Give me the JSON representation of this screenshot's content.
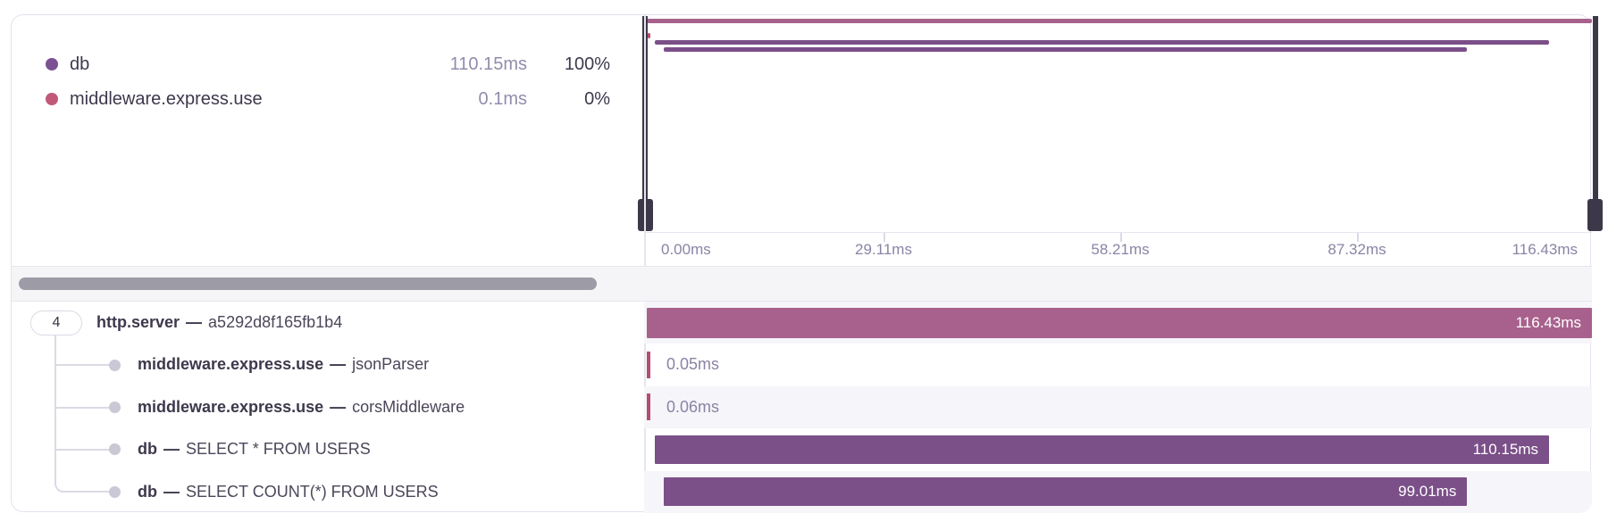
{
  "legend": {
    "items": [
      {
        "name": "db",
        "duration": "110.15ms",
        "percent": "100%",
        "color": "#7c5193"
      },
      {
        "name": "middleware.express.use",
        "duration": "0.1ms",
        "percent": "0%",
        "color": "#c05a78"
      }
    ]
  },
  "minimap": {
    "total_ms": 116.43,
    "axis_labels": [
      "0.00ms",
      "29.11ms",
      "58.21ms",
      "87.32ms",
      "116.43ms"
    ],
    "spans": [
      {
        "name": "http.server",
        "start_ms": 0,
        "duration_ms": 116.43,
        "color": "#a8618c"
      },
      {
        "name": "middleware.express.use",
        "start_ms": 0.15,
        "duration_ms": 0.11,
        "color": "#b44e70"
      },
      {
        "name": "db SELECT * FROM USERS",
        "start_ms": 1.0,
        "duration_ms": 110.15,
        "color": "#7b4f88"
      },
      {
        "name": "db SELECT COUNT(*) FROM USERS",
        "start_ms": 2.05,
        "duration_ms": 99.01,
        "color": "#7b4f88"
      }
    ]
  },
  "waterfall": {
    "rows": [
      {
        "badge": "4",
        "name": "http.server",
        "separator": "—",
        "suffix": "a5292d8f165fb1b4",
        "duration_label": "116.43ms",
        "type": "bar",
        "start_ms": 0,
        "duration_ms": 116.43,
        "color": "#a8618c"
      },
      {
        "name": "middleware.express.use",
        "separator": "—",
        "suffix": "jsonParser",
        "duration_label": "0.05ms",
        "type": "tick",
        "start_ms": 0,
        "duration_ms": 0.05,
        "color": "#b44e70"
      },
      {
        "name": "middleware.express.use",
        "separator": "—",
        "suffix": "corsMiddleware",
        "duration_label": "0.06ms",
        "type": "tick",
        "start_ms": 0,
        "duration_ms": 0.06,
        "color": "#b44e70"
      },
      {
        "name": "db",
        "separator": "—",
        "suffix": "SELECT * FROM USERS",
        "duration_label": "110.15ms",
        "type": "bar",
        "start_ms": 1.0,
        "duration_ms": 110.15,
        "color": "#7b4f88"
      },
      {
        "name": "db",
        "separator": "—",
        "suffix": "SELECT COUNT(*) FROM USERS",
        "duration_label": "99.01ms",
        "type": "bar",
        "start_ms": 2.05,
        "duration_ms": 99.01,
        "color": "#7b4f88"
      }
    ]
  }
}
